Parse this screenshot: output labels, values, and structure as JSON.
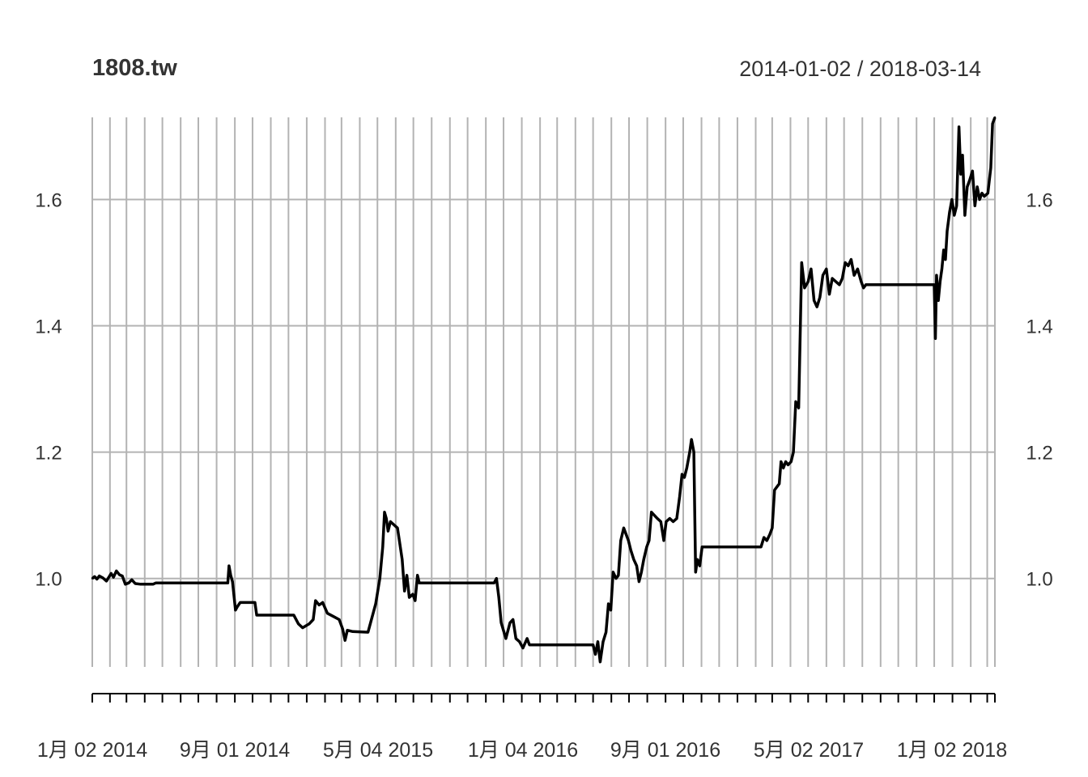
{
  "chart_data": {
    "type": "line",
    "title": "1808.tw",
    "subtitle": "2014-01-02 / 2018-03-14",
    "xlabel": "",
    "ylabel": "",
    "x_tick_labels": [
      "1月 02 2014",
      "9月 01 2014",
      "5月 04 2015",
      "1月 04 2016",
      "9月 01 2016",
      "5月 02 2017",
      "1月 02 2018"
    ],
    "y_tick_labels": [
      "1.0",
      "1.2",
      "1.4",
      "1.6"
    ],
    "y_ticks": [
      1.0,
      1.2,
      1.4,
      1.6
    ],
    "ylim": [
      0.86,
      1.73
    ],
    "xlim": [
      "2014-01-02",
      "2018-03-14"
    ],
    "grid": true,
    "line_color": "#000000",
    "grid_color": "#b3b3b3",
    "series": [
      {
        "points": [
          [
            "2014-01-02",
            1.0
          ],
          [
            "2014-01-06",
            1.003
          ],
          [
            "2014-01-10",
            0.999
          ],
          [
            "2014-01-14",
            1.004
          ],
          [
            "2014-01-20",
            1.001
          ],
          [
            "2014-01-26",
            0.996
          ],
          [
            "2014-02-03",
            1.008
          ],
          [
            "2014-02-07",
            1.002
          ],
          [
            "2014-02-12",
            1.012
          ],
          [
            "2014-02-17",
            1.006
          ],
          [
            "2014-02-22",
            1.004
          ],
          [
            "2014-02-27",
            0.991
          ],
          [
            "2014-03-05",
            0.993
          ],
          [
            "2014-03-10",
            0.998
          ],
          [
            "2014-03-16",
            0.992
          ],
          [
            "2014-03-25",
            0.991
          ],
          [
            "2014-04-15",
            0.991
          ],
          [
            "2014-04-20",
            0.993
          ],
          [
            "2014-06-01",
            0.993
          ],
          [
            "2014-08-20",
            0.993
          ],
          [
            "2014-08-22",
            1.02
          ],
          [
            "2014-08-25",
            1.005
          ],
          [
            "2014-08-28",
            0.995
          ],
          [
            "2014-09-02",
            0.95
          ],
          [
            "2014-09-05",
            0.955
          ],
          [
            "2014-09-10",
            0.962
          ],
          [
            "2014-10-05",
            0.962
          ],
          [
            "2014-10-08",
            0.942
          ],
          [
            "2014-12-10",
            0.942
          ],
          [
            "2014-12-18",
            0.928
          ],
          [
            "2014-12-25",
            0.922
          ],
          [
            "2015-01-05",
            0.928
          ],
          [
            "2015-01-12",
            0.935
          ],
          [
            "2015-01-16",
            0.965
          ],
          [
            "2015-01-22",
            0.958
          ],
          [
            "2015-01-28",
            0.962
          ],
          [
            "2015-02-05",
            0.945
          ],
          [
            "2015-02-15",
            0.94
          ],
          [
            "2015-02-25",
            0.935
          ],
          [
            "2015-03-03",
            0.92
          ],
          [
            "2015-03-07",
            0.902
          ],
          [
            "2015-03-11",
            0.918
          ],
          [
            "2015-03-20",
            0.916
          ],
          [
            "2015-04-15",
            0.915
          ],
          [
            "2015-04-28",
            0.96
          ],
          [
            "2015-05-05",
            1.0
          ],
          [
            "2015-05-10",
            1.05
          ],
          [
            "2015-05-13",
            1.105
          ],
          [
            "2015-05-16",
            1.095
          ],
          [
            "2015-05-19",
            1.075
          ],
          [
            "2015-05-23",
            1.09
          ],
          [
            "2015-06-04",
            1.08
          ],
          [
            "2015-06-12",
            1.03
          ],
          [
            "2015-06-16",
            0.98
          ],
          [
            "2015-06-20",
            1.005
          ],
          [
            "2015-06-24",
            0.97
          ],
          [
            "2015-06-30",
            0.975
          ],
          [
            "2015-07-04",
            0.965
          ],
          [
            "2015-07-08",
            1.005
          ],
          [
            "2015-07-11",
            0.993
          ],
          [
            "2015-11-15",
            0.993
          ],
          [
            "2015-11-19",
            1.0
          ],
          [
            "2015-11-23",
            0.97
          ],
          [
            "2015-11-27",
            0.93
          ],
          [
            "2015-12-05",
            0.905
          ],
          [
            "2015-12-12",
            0.93
          ],
          [
            "2015-12-17",
            0.935
          ],
          [
            "2015-12-22",
            0.905
          ],
          [
            "2015-12-28",
            0.9
          ],
          [
            "2016-01-03",
            0.89
          ],
          [
            "2016-01-10",
            0.905
          ],
          [
            "2016-01-14",
            0.895
          ],
          [
            "2016-05-01",
            0.895
          ],
          [
            "2016-05-05",
            0.88
          ],
          [
            "2016-05-09",
            0.9
          ],
          [
            "2016-05-13",
            0.868
          ],
          [
            "2016-05-18",
            0.9
          ],
          [
            "2016-05-23",
            0.915
          ],
          [
            "2016-05-27",
            0.96
          ],
          [
            "2016-05-31",
            0.95
          ],
          [
            "2016-06-04",
            1.01
          ],
          [
            "2016-06-09",
            1.0
          ],
          [
            "2016-06-13",
            1.005
          ],
          [
            "2016-06-17",
            1.06
          ],
          [
            "2016-06-22",
            1.08
          ],
          [
            "2016-06-26",
            1.07
          ],
          [
            "2016-06-30",
            1.06
          ],
          [
            "2016-07-04",
            1.045
          ],
          [
            "2016-07-09",
            1.03
          ],
          [
            "2016-07-14",
            1.02
          ],
          [
            "2016-07-18",
            0.995
          ],
          [
            "2016-07-22",
            1.01
          ],
          [
            "2016-07-26",
            1.03
          ],
          [
            "2016-07-31",
            1.05
          ],
          [
            "2016-08-04",
            1.06
          ],
          [
            "2016-08-08",
            1.105
          ],
          [
            "2016-08-13",
            1.1
          ],
          [
            "2016-08-18",
            1.095
          ],
          [
            "2016-08-24",
            1.09
          ],
          [
            "2016-08-29",
            1.06
          ],
          [
            "2016-09-02",
            1.09
          ],
          [
            "2016-09-08",
            1.095
          ],
          [
            "2016-09-14",
            1.09
          ],
          [
            "2016-09-20",
            1.095
          ],
          [
            "2016-09-25",
            1.13
          ],
          [
            "2016-09-29",
            1.165
          ],
          [
            "2016-10-03",
            1.16
          ],
          [
            "2016-10-07",
            1.175
          ],
          [
            "2016-10-12",
            1.2
          ],
          [
            "2016-10-15",
            1.22
          ],
          [
            "2016-10-19",
            1.2
          ],
          [
            "2016-10-22",
            1.01
          ],
          [
            "2016-10-25",
            1.03
          ],
          [
            "2016-10-29",
            1.02
          ],
          [
            "2016-11-02",
            1.05
          ],
          [
            "2017-02-10",
            1.05
          ],
          [
            "2017-02-15",
            1.065
          ],
          [
            "2017-02-20",
            1.06
          ],
          [
            "2017-02-25",
            1.07
          ],
          [
            "2017-03-01",
            1.08
          ],
          [
            "2017-03-05",
            1.14
          ],
          [
            "2017-03-09",
            1.145
          ],
          [
            "2017-03-13",
            1.15
          ],
          [
            "2017-03-16",
            1.185
          ],
          [
            "2017-03-20",
            1.175
          ],
          [
            "2017-03-24",
            1.185
          ],
          [
            "2017-03-28",
            1.18
          ],
          [
            "2017-04-02",
            1.185
          ],
          [
            "2017-04-06",
            1.2
          ],
          [
            "2017-04-10",
            1.28
          ],
          [
            "2017-04-15",
            1.27
          ],
          [
            "2017-04-20",
            1.5
          ],
          [
            "2017-04-25",
            1.46
          ],
          [
            "2017-05-01",
            1.47
          ],
          [
            "2017-05-06",
            1.49
          ],
          [
            "2017-05-11",
            1.44
          ],
          [
            "2017-05-16",
            1.43
          ],
          [
            "2017-05-21",
            1.445
          ],
          [
            "2017-05-26",
            1.48
          ],
          [
            "2017-06-01",
            1.49
          ],
          [
            "2017-06-06",
            1.45
          ],
          [
            "2017-06-11",
            1.475
          ],
          [
            "2017-06-17",
            1.47
          ],
          [
            "2017-06-23",
            1.465
          ],
          [
            "2017-06-28",
            1.475
          ],
          [
            "2017-07-03",
            1.5
          ],
          [
            "2017-07-08",
            1.495
          ],
          [
            "2017-07-13",
            1.505
          ],
          [
            "2017-07-18",
            1.48
          ],
          [
            "2017-07-24",
            1.49
          ],
          [
            "2017-07-30",
            1.47
          ],
          [
            "2017-08-03",
            1.46
          ],
          [
            "2017-08-07",
            1.465
          ],
          [
            "2017-12-01",
            1.465
          ],
          [
            "2017-12-03",
            1.38
          ],
          [
            "2017-12-05",
            1.48
          ],
          [
            "2017-12-08",
            1.44
          ],
          [
            "2017-12-11",
            1.47
          ],
          [
            "2017-12-14",
            1.49
          ],
          [
            "2017-12-17",
            1.52
          ],
          [
            "2017-12-20",
            1.505
          ],
          [
            "2017-12-23",
            1.55
          ],
          [
            "2017-12-27",
            1.58
          ],
          [
            "2017-12-31",
            1.6
          ],
          [
            "2018-01-04",
            1.575
          ],
          [
            "2018-01-08",
            1.59
          ],
          [
            "2018-01-12",
            1.715
          ],
          [
            "2018-01-15",
            1.64
          ],
          [
            "2018-01-18",
            1.67
          ],
          [
            "2018-01-22",
            1.575
          ],
          [
            "2018-01-26",
            1.62
          ],
          [
            "2018-01-30",
            1.63
          ],
          [
            "2018-02-04",
            1.645
          ],
          [
            "2018-02-08",
            1.59
          ],
          [
            "2018-02-12",
            1.62
          ],
          [
            "2018-02-16",
            1.6
          ],
          [
            "2018-02-20",
            1.61
          ],
          [
            "2018-02-24",
            1.605
          ],
          [
            "2018-03-02",
            1.61
          ],
          [
            "2018-03-07",
            1.65
          ],
          [
            "2018-03-10",
            1.72
          ],
          [
            "2018-03-14",
            1.73
          ]
        ]
      }
    ]
  }
}
